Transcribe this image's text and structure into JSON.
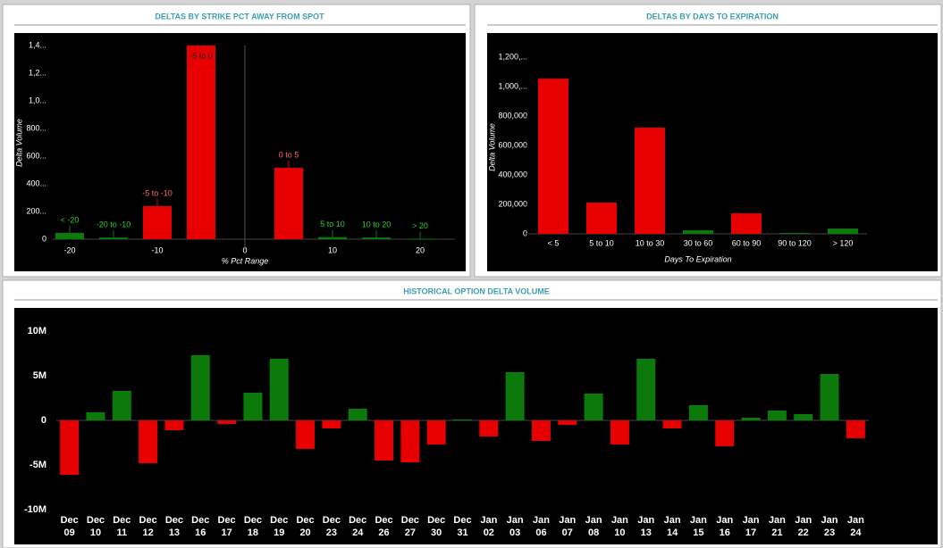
{
  "chart_data": [
    {
      "type": "bar",
      "title": "DELTAS BY STRIKE PCT AWAY FROM SPOT",
      "x_label": "% Pct Range",
      "y_label": "Delta Volume",
      "x": [
        -20,
        -15,
        -10,
        -5,
        5,
        10,
        15,
        20
      ],
      "categories": [
        "< -20",
        "-20 to -10",
        "-5 to -10",
        "-5 to 0",
        "0 to 5",
        "5 to 10",
        "10 to 20",
        "> 20"
      ],
      "values": [
        45000,
        12000,
        239000,
        1400000,
        516000,
        15000,
        12000,
        3000
      ],
      "colors": [
        "#0b7a0b",
        "#0b7a0b",
        "#e60000",
        "#e60000",
        "#e60000",
        "#0b7a0b",
        "#0b7a0b",
        "#0b7a0b"
      ],
      "xlim": [
        -22,
        24
      ],
      "xticks": [
        -20,
        -10,
        0,
        10,
        20
      ],
      "ylim": [
        0,
        1400000
      ],
      "yticks": [
        0,
        {
          "value": 200000,
          "label": "200..."
        },
        {
          "value": 400000,
          "label": "400..."
        },
        {
          "value": 600000,
          "label": "600..."
        },
        {
          "value": 800000,
          "label": "800..."
        },
        {
          "value": 1000000,
          "label": "1,0..."
        },
        {
          "value": 1200000,
          "label": "1,2..."
        },
        {
          "value": 1400000,
          "label": "1,4..."
        }
      ]
    },
    {
      "type": "bar",
      "title": "DELTAS BY DAYS TO EXPIRATION",
      "x_label": "Days To Expiration",
      "y_label": "Delta Volume",
      "categories": [
        "< 5",
        "5 to 10",
        "10 to 30",
        "30 to 60",
        "60 to 90",
        "90 to 120",
        "> 120"
      ],
      "values": [
        1054000,
        212000,
        721000,
        24000,
        139000,
        6000,
        36000
      ],
      "colors": [
        "#e60000",
        "#e60000",
        "#e60000",
        "#0b7a0b",
        "#e60000",
        "#0b7a0b",
        "#0b7a0b"
      ],
      "ylim": [
        0,
        1300000
      ],
      "yticks": [
        0,
        {
          "value": 200000,
          "label": "200,000"
        },
        {
          "value": 400000,
          "label": "400,000"
        },
        {
          "value": 600000,
          "label": "600,000"
        },
        {
          "value": 800000,
          "label": "800,000"
        },
        {
          "value": 1000000,
          "label": "1,000,..."
        },
        {
          "value": 1200000,
          "label": "1,200,..."
        }
      ]
    },
    {
      "type": "bar",
      "title": "HISTORICAL OPTION DELTA VOLUME",
      "categories": [
        "Dec 09",
        "Dec 10",
        "Dec 11",
        "Dec 12",
        "Dec 13",
        "Dec 16",
        "Dec 17",
        "Dec 18",
        "Dec 19",
        "Dec 20",
        "Dec 23",
        "Dec 24",
        "Dec 26",
        "Dec 27",
        "Dec 30",
        "Dec 31",
        "Jan 02",
        "Jan 03",
        "Jan 06",
        "Jan 07",
        "Jan 08",
        "Jan 10",
        "Jan 13",
        "Jan 14",
        "Jan 15",
        "Jan 16",
        "Jan 17",
        "Jan 21",
        "Jan 22",
        "Jan 23",
        "Jan 24"
      ],
      "values": [
        -6100000,
        900000,
        3300000,
        -4800000,
        -1100000,
        7300000,
        -400000,
        3100000,
        6900000,
        -3200000,
        -900000,
        1300000,
        -4500000,
        -4700000,
        -2700000,
        100000,
        -1800000,
        5400000,
        -2300000,
        -500000,
        3000000,
        -2700000,
        6900000,
        -900000,
        1700000,
        -2900000,
        300000,
        1100000,
        700000,
        5200000,
        -2000000
      ],
      "positive_color": "#0b7a0b",
      "negative_color": "#e60000",
      "ylim": [
        -10000000,
        12000000
      ],
      "yticks": [
        {
          "value": -10000000,
          "label": "-10M"
        },
        {
          "value": -5000000,
          "label": "-5M"
        },
        0,
        {
          "value": 5000000,
          "label": "5M"
        },
        {
          "value": 10000000,
          "label": "10M"
        }
      ]
    }
  ]
}
